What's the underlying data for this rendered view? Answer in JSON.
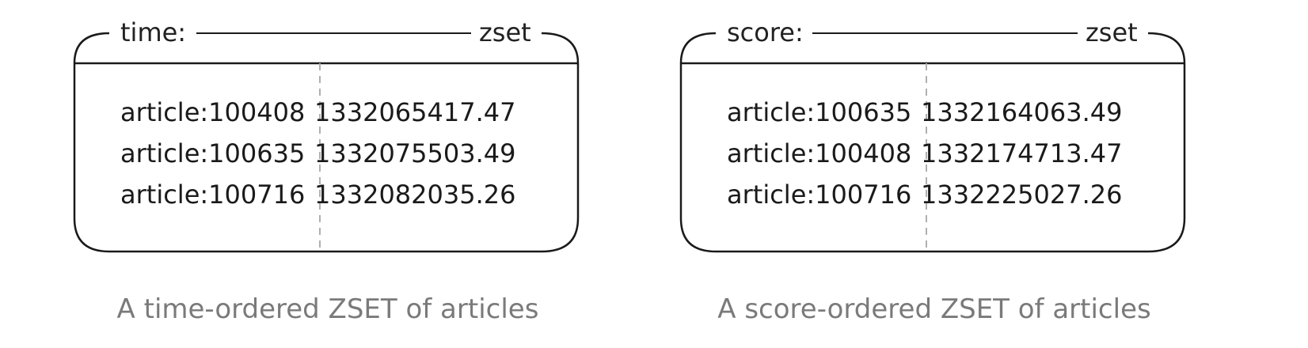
{
  "panels": [
    {
      "key_label": "time:",
      "type_label": "zset",
      "rows": [
        {
          "member": "article:100408",
          "score": "1332065417.47"
        },
        {
          "member": "article:100635",
          "score": "1332075503.49"
        },
        {
          "member": "article:100716",
          "score": "1332082035.26"
        }
      ],
      "caption": "A time-ordered ZSET of articles"
    },
    {
      "key_label": "score:",
      "type_label": "zset",
      "rows": [
        {
          "member": "article:100635",
          "score": "1332164063.49"
        },
        {
          "member": "article:100408",
          "score": "1332174713.47"
        },
        {
          "member": "article:100716",
          "score": "1332225027.26"
        }
      ],
      "caption": "A score-ordered ZSET of articles"
    }
  ],
  "colors": {
    "border": "#1a1a1a",
    "divider": "#b0b0b0",
    "text": "#1a1a1a",
    "caption": "#7a7a7a"
  }
}
